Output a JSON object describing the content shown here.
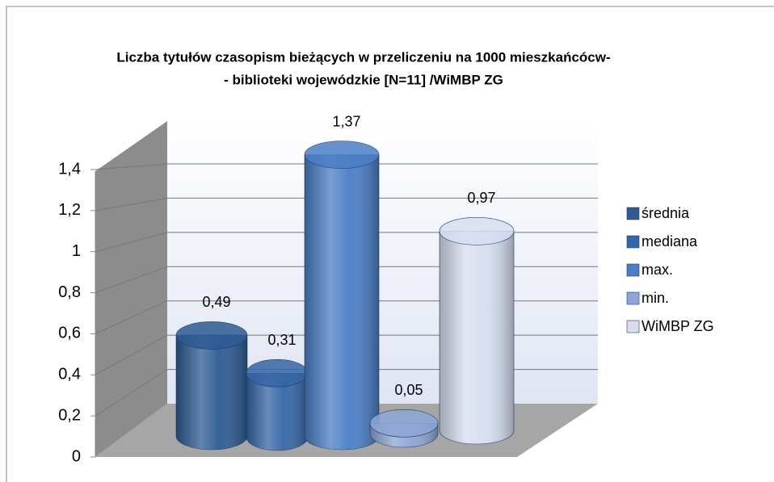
{
  "chart_data": {
    "type": "bar",
    "title": [
      "Liczba tytułów czasopism bieżących w przeliczeniu na 1000 mieszkańcócw-",
      "- biblioteki wojewódzkie  [N=11] /WiMBP  ZG"
    ],
    "categories": [
      null
    ],
    "series": [
      {
        "name": "średnia",
        "color": "#2d5b93",
        "values": [
          0.49
        ],
        "value_labels": [
          "0,49"
        ]
      },
      {
        "name": "mediana",
        "color": "#3565a5",
        "values": [
          0.31
        ],
        "value_labels": [
          "0,31"
        ]
      },
      {
        "name": "max.",
        "color": "#4a7ec6",
        "values": [
          1.37
        ],
        "value_labels": [
          "1,37"
        ]
      },
      {
        "name": "min.",
        "color": "#8da6d6",
        "values": [
          0.05
        ],
        "value_labels": [
          "0,05"
        ]
      },
      {
        "name": "WiMBP ZG",
        "color": "#d6def0",
        "values": [
          0.97
        ],
        "value_labels": [
          "0,97"
        ]
      }
    ],
    "ylim": [
      0,
      1.4
    ],
    "yticks": [
      0,
      {
        "value": 0.2,
        "label": "0,2"
      },
      {
        "value": 0.4,
        "label": "0,4"
      },
      {
        "value": 0.6,
        "label": "0,6"
      },
      {
        "value": 0.8,
        "label": "0,8"
      },
      1,
      {
        "value": 1.2,
        "label": "1,2"
      },
      {
        "value": 1.4,
        "label": "1,4"
      }
    ],
    "grid": true,
    "legend": "right"
  }
}
